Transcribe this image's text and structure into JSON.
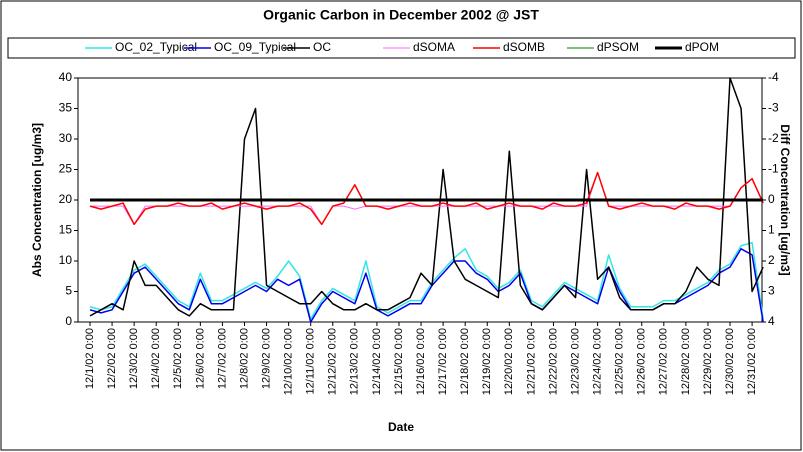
{
  "chart_data": {
    "type": "line",
    "title": "Organic Carbon in December 2002 @ JST",
    "xlabel": "Date",
    "ylabel": "Abs Concentration [ug/m3]",
    "y2label": "Diff Concentration [ug/m3]",
    "categories": [
      "12/1/02 0:00",
      null,
      "12/2/02 0:00",
      null,
      "12/3/02 0:00",
      null,
      "12/4/02 0:00",
      null,
      "12/5/02 0:00",
      null,
      "12/6/02 0:00",
      null,
      "12/7/02 0:00",
      null,
      "12/8/02 0:00",
      null,
      "12/9/02 0:00",
      null,
      "12/10/02 0:00",
      null,
      "12/11/02 0:00",
      null,
      "12/12/02 0:00",
      null,
      "12/13/02 0:00",
      null,
      "12/14/02 0:00",
      null,
      "12/15/02 0:00",
      null,
      "12/16/02 0:00",
      null,
      "12/17/02 0:00",
      null,
      "12/18/02 0:00",
      null,
      "12/19/02 0:00",
      null,
      "12/20/02 0:00",
      null,
      "12/21/02 0:00",
      null,
      "12/22/02 0:00",
      null,
      "12/23/02 0:00",
      null,
      "12/24/02 0:00",
      null,
      "12/25/02 0:00",
      null,
      "12/26/02 0:00",
      null,
      "12/27/02 0:00",
      null,
      "12/28/02 0:00",
      null,
      "12/29/02 0:00",
      null,
      "12/30/02 0:00",
      null,
      "12/31/02 0:00",
      null
    ],
    "ylim": [
      0,
      40
    ],
    "yticks": [
      0,
      5,
      10,
      15,
      20,
      25,
      30,
      35,
      40
    ],
    "y2lim": [
      4,
      -4
    ],
    "y2ticks": [
      -4,
      -3,
      -2,
      -1,
      0,
      1,
      2,
      3,
      4
    ],
    "series": [
      {
        "name": "OC_02_Typical",
        "color": "#33e6e6",
        "width": 1.5,
        "values": [
          2.5,
          2,
          2.5,
          5.5,
          8.5,
          9.5,
          7.5,
          5.5,
          3.5,
          2.5,
          8,
          3.5,
          3.5,
          4.5,
          5.5,
          6.5,
          5.5,
          7.5,
          10,
          7.5,
          0.5,
          3.5,
          5.5,
          4.5,
          3.5,
          10,
          2.5,
          1.5,
          2.5,
          3.5,
          3.5,
          6.5,
          8.5,
          10.5,
          12,
          8.5,
          7.5,
          5.5,
          6.5,
          8.5,
          3.5,
          2.5,
          4.5,
          6.5,
          5.5,
          4.5,
          3.5,
          11,
          5.5,
          2.5,
          2.5,
          2.5,
          3.5,
          3.5,
          4.5,
          5.5,
          6.5,
          8.5,
          9.5,
          12.5,
          13,
          0.5
        ]
      },
      {
        "name": "OC_09_Typical",
        "color": "#0000ee",
        "width": 1.5,
        "values": [
          2,
          1.5,
          2,
          5,
          8,
          9,
          7,
          5,
          3,
          2,
          7,
          3,
          3,
          4,
          5,
          6,
          5,
          7,
          6,
          7,
          0,
          3,
          5,
          4,
          3,
          8,
          2,
          1,
          2,
          3,
          3,
          6,
          8,
          10,
          10,
          8,
          7,
          5,
          6,
          8,
          3,
          2,
          4,
          6,
          5,
          4,
          3,
          9,
          5,
          2,
          2,
          2,
          3,
          3,
          4,
          5,
          6,
          8,
          9,
          12,
          11,
          0
        ]
      },
      {
        "name": "OC",
        "color": "#000000",
        "width": 1.5,
        "values": [
          1,
          2,
          3,
          2,
          10,
          6,
          6,
          4,
          2,
          1,
          3,
          2,
          2,
          2,
          30,
          35,
          6,
          5,
          4,
          3,
          3,
          5,
          3,
          2,
          2,
          3,
          2,
          2,
          3,
          4,
          8,
          6,
          25,
          10,
          7,
          6,
          5,
          4,
          28,
          6,
          3,
          2,
          4,
          6,
          4,
          25,
          7,
          9,
          4,
          2,
          2,
          2,
          3,
          3,
          5,
          9,
          7,
          6,
          40,
          35,
          5,
          9
        ]
      },
      {
        "name": "dSOMA",
        "color": "#ff66ff",
        "width": 1,
        "axis": "y2",
        "values": [
          0.2,
          0.2,
          0.2,
          0.2,
          0.8,
          0.2,
          0.2,
          0.2,
          0.2,
          0.2,
          0.2,
          0.2,
          0.2,
          0.2,
          0.2,
          0.2,
          0.2,
          0.2,
          0.2,
          0.2,
          0.2,
          0.8,
          0.2,
          0.2,
          0.3,
          0.2,
          0.2,
          0.2,
          0.2,
          0.2,
          0.2,
          0.2,
          0.2,
          0.2,
          0.2,
          0.2,
          0.2,
          0.2,
          0.2,
          0.2,
          0.2,
          0.2,
          0.2,
          0.2,
          0.2,
          0.2,
          -0.9,
          0.2,
          0.2,
          0.2,
          0.2,
          0.2,
          0.2,
          0.2,
          0.2,
          0.2,
          0.2,
          0.2,
          0.2,
          -0.4,
          -0.7,
          0.1
        ]
      },
      {
        "name": "dSOMB",
        "color": "#ff0000",
        "width": 1.5,
        "axis": "y2",
        "values": [
          0.2,
          0.3,
          0.2,
          0.1,
          0.8,
          0.3,
          0.2,
          0.2,
          0.1,
          0.2,
          0.2,
          0.1,
          0.3,
          0.2,
          0.1,
          0.2,
          0.3,
          0.2,
          0.2,
          0.1,
          0.3,
          0.8,
          0.2,
          0.1,
          -0.5,
          0.2,
          0.2,
          0.3,
          0.2,
          0.1,
          0.2,
          0.2,
          0.1,
          0.2,
          0.2,
          0.1,
          0.3,
          0.2,
          0.1,
          0.2,
          0.2,
          0.3,
          0.1,
          0.2,
          0.2,
          0.1,
          -0.9,
          0.2,
          0.3,
          0.2,
          0.1,
          0.2,
          0.2,
          0.3,
          0.1,
          0.2,
          0.2,
          0.3,
          0.2,
          -0.4,
          -0.7,
          0.1
        ]
      },
      {
        "name": "dPSOM",
        "color": "#008000",
        "width": 1,
        "axis": "y2",
        "values": [
          0,
          0,
          0,
          0,
          0,
          0,
          0,
          0,
          0,
          0,
          0,
          0,
          0,
          0,
          0,
          0,
          0,
          0,
          0,
          0,
          0,
          0,
          0,
          0,
          0,
          0,
          0,
          0,
          0,
          0,
          0,
          0,
          0,
          0,
          0,
          0,
          0,
          0,
          0,
          0,
          0,
          0,
          0,
          0,
          0,
          0,
          0,
          0,
          0,
          0,
          0,
          0,
          0,
          0,
          0,
          0,
          0,
          0,
          0,
          0,
          0,
          0
        ]
      },
      {
        "name": "dPOM",
        "color": "#000000",
        "width": 3,
        "axis": "y2",
        "values": [
          0,
          0,
          0,
          0,
          0,
          0,
          0,
          0,
          0,
          0,
          0,
          0,
          0,
          0,
          0,
          0,
          0,
          0,
          0,
          0,
          0,
          0,
          0,
          0,
          0,
          0,
          0,
          0,
          0,
          0,
          0,
          0,
          0,
          0,
          0,
          0,
          0,
          0,
          0,
          0,
          0,
          0,
          0,
          0,
          0,
          0,
          0,
          0,
          0,
          0,
          0,
          0,
          0,
          0,
          0,
          0,
          0,
          0,
          0,
          0,
          0,
          0
        ]
      }
    ]
  }
}
